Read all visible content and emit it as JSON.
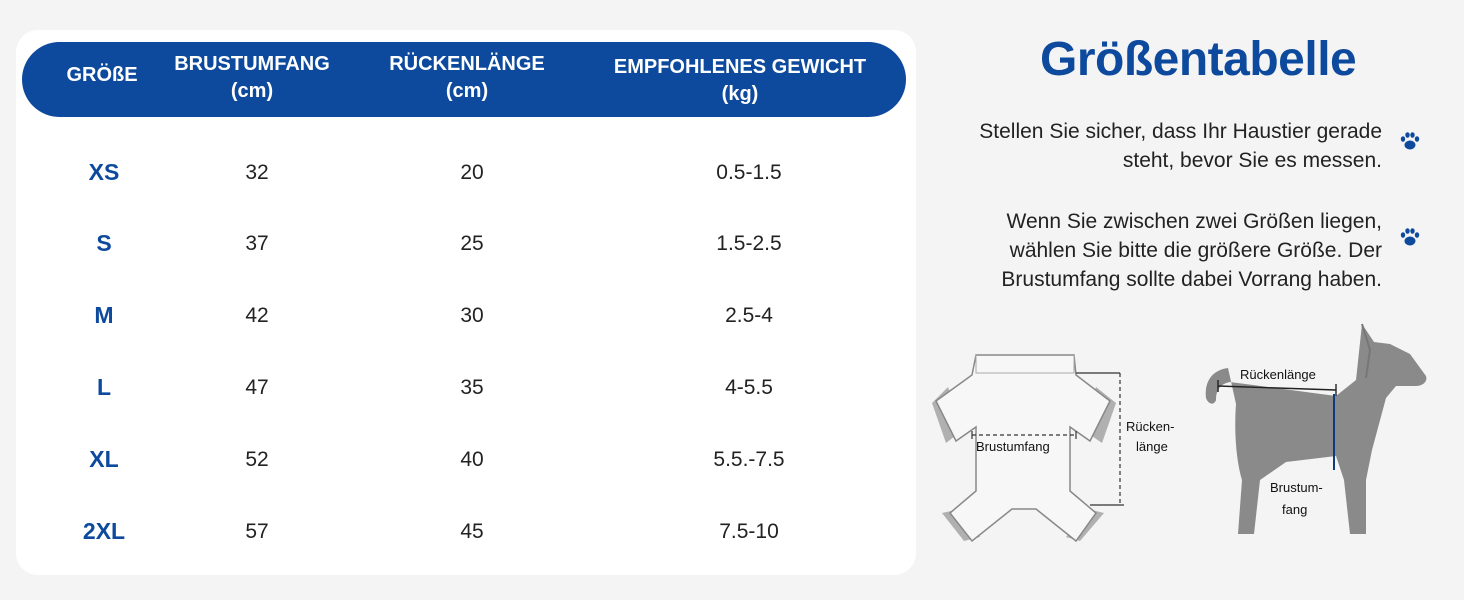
{
  "table": {
    "headers": [
      {
        "line1": "GRÖßE",
        "line2": ""
      },
      {
        "line1": "BRUSTUMFANG",
        "line2": "(cm)"
      },
      {
        "line1": "RÜCKENLÄNGE",
        "line2": "(cm)"
      },
      {
        "line1": "EMPFOHLENES GEWICHT",
        "line2": "(kg)"
      }
    ],
    "rows": [
      {
        "size": "XS",
        "chest": "32",
        "back": "20",
        "weight": "0.5-1.5"
      },
      {
        "size": "S",
        "chest": "37",
        "back": "25",
        "weight": "1.5-2.5"
      },
      {
        "size": "M",
        "chest": "42",
        "back": "30",
        "weight": "2.5-4"
      },
      {
        "size": "L",
        "chest": "47",
        "back": "35",
        "weight": "4-5.5"
      },
      {
        "size": "XL",
        "chest": "52",
        "back": "40",
        "weight": "5.5.-7.5"
      },
      {
        "size": "2XL",
        "chest": "57",
        "back": "45",
        "weight": "7.5-10"
      }
    ]
  },
  "title": "Größentabelle",
  "notes": [
    {
      "line1": "Stellen Sie sicher, dass Ihr Haustier gerade",
      "line2": "steht, bevor Sie es messen.",
      "line3": ""
    },
    {
      "line1": "Wenn Sie zwischen zwei Größen liegen,",
      "line2": "wählen Sie bitte die größere Größe. Der",
      "line3": "Brustumfang sollte dabei Vorrang haben."
    }
  ],
  "shirt_diagram": {
    "chest_label": "Brustumfang",
    "back_label_line1": "Rücken-",
    "back_label_line2": "länge"
  },
  "dog_diagram": {
    "back_label": "Rückenlänge",
    "chest_label_line1": "Brustum-",
    "chest_label_line2": "fang"
  },
  "colors": {
    "brand_blue": "#0d4a9d",
    "dog_gray": "#8a8a8a",
    "background": "#f4f4f4"
  },
  "icons": [
    "paw-icon",
    "paw-icon"
  ]
}
